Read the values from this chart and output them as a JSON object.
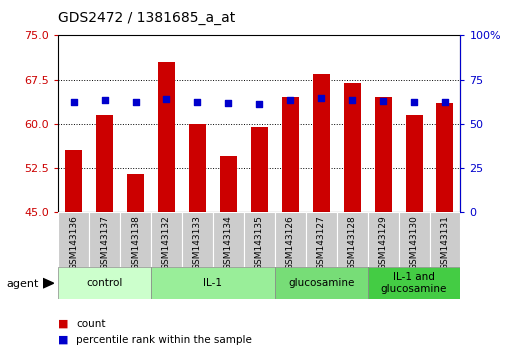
{
  "title": "GDS2472 / 1381685_a_at",
  "samples": [
    "GSM143136",
    "GSM143137",
    "GSM143138",
    "GSM143132",
    "GSM143133",
    "GSM143134",
    "GSM143135",
    "GSM143126",
    "GSM143127",
    "GSM143128",
    "GSM143129",
    "GSM143130",
    "GSM143131"
  ],
  "counts": [
    55.5,
    61.5,
    51.5,
    70.5,
    60.0,
    54.5,
    59.5,
    64.5,
    68.5,
    67.0,
    64.5,
    61.5,
    63.5
  ],
  "percentiles": [
    62.5,
    63.5,
    62.5,
    64.0,
    62.5,
    62.0,
    61.5,
    63.5,
    64.5,
    63.5,
    63.0,
    62.5,
    62.5
  ],
  "bar_color": "#cc0000",
  "dot_color": "#0000cc",
  "ylim_left": [
    45,
    75
  ],
  "ylim_right": [
    0,
    100
  ],
  "yticks_left": [
    45,
    52.5,
    60,
    67.5,
    75
  ],
  "yticks_right": [
    0,
    25,
    50,
    75,
    100
  ],
  "groups": [
    {
      "label": "control",
      "start": 0,
      "end": 3,
      "color": "#ccffcc"
    },
    {
      "label": "IL-1",
      "start": 3,
      "end": 7,
      "color": "#99ee99"
    },
    {
      "label": "glucosamine",
      "start": 7,
      "end": 10,
      "color": "#77dd77"
    },
    {
      "label": "IL-1 and\nglucosamine",
      "start": 10,
      "end": 13,
      "color": "#44cc44"
    }
  ],
  "bar_width": 0.55,
  "dot_size": 25,
  "legend_count_label": "count",
  "legend_pct_label": "percentile rank within the sample",
  "agent_label": "agent",
  "tick_label_bg": "#cccccc"
}
